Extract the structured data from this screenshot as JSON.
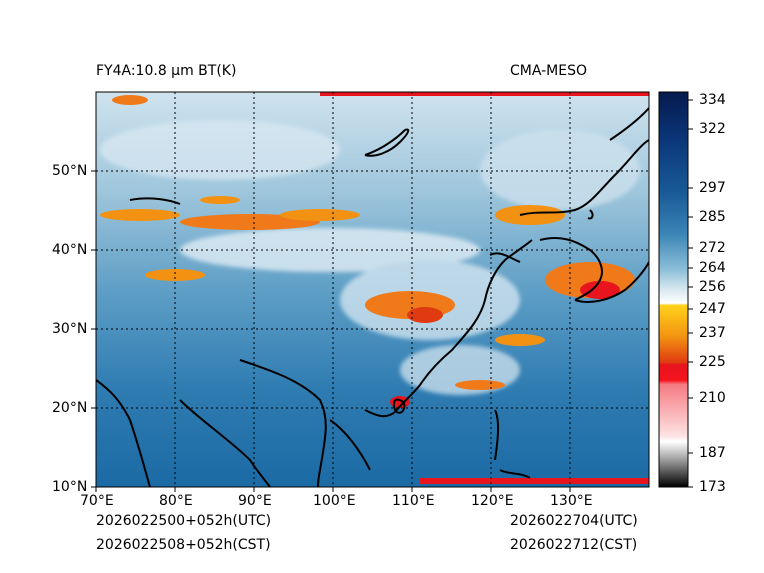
{
  "title_left": "FY4A:10.8 µm BT(K)",
  "title_right": "CMA-MESO",
  "lon_ticks": [
    "70°E",
    "80°E",
    "90°E",
    "100°E",
    "110°E",
    "120°E",
    "130°E"
  ],
  "lat_ticks": [
    "10°N",
    "20°N",
    "30°N",
    "40°N",
    "50°N"
  ],
  "colorbar_ticks": [
    "334",
    "322",
    "297",
    "285",
    "272",
    "264",
    "256",
    "247",
    "237",
    "225",
    "210",
    "187",
    "173"
  ],
  "time_utc_start": "2026022500+052h(UTC)",
  "time_cst_start": "2026022508+052h(CST)",
  "time_utc_valid": "2026022704(UTC)",
  "time_cst_valid": "2026022712(CST)",
  "colors": {
    "ocean": "#1f6fa8",
    "cloud_cold": "#f07a1a",
    "cloud_warm_white": "#e8f2f8",
    "coast": "#000000"
  },
  "map_extent": {
    "lon": [
      70,
      140
    ],
    "lat": [
      10,
      60
    ]
  },
  "colorbar_range": [
    173,
    334
  ]
}
